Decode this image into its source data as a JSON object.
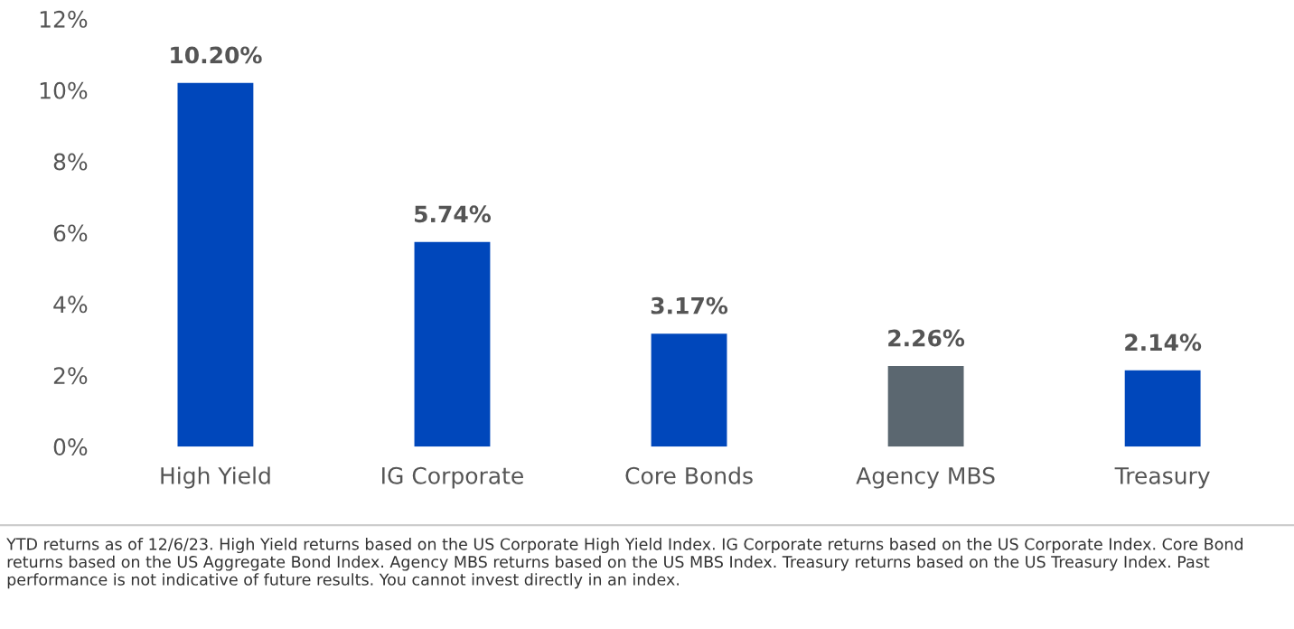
{
  "chart_data": {
    "type": "bar",
    "categories": [
      "High Yield",
      "IG Corporate",
      "Core Bonds",
      "Agency MBS",
      "Treasury"
    ],
    "values": [
      10.2,
      5.74,
      3.17,
      2.26,
      2.14
    ],
    "colors": [
      "#0047bb",
      "#0047bb",
      "#0047bb",
      "#5b6770",
      "#0047bb"
    ],
    "value_labels": [
      "10.20%",
      "5.74%",
      "3.17%",
      "2.26%",
      "2.14%"
    ],
    "ylim": [
      0,
      12
    ],
    "yticks": [
      {
        "value": 0,
        "label": "0%"
      },
      {
        "value": 2,
        "label": "2%"
      },
      {
        "value": 4,
        "label": "4%"
      },
      {
        "value": 6,
        "label": "6%"
      },
      {
        "value": 8,
        "label": "8%"
      },
      {
        "value": 10,
        "label": "10%"
      },
      {
        "value": 12,
        "label": "12%"
      }
    ],
    "grid": false,
    "legend": false,
    "annotations": [
      "YTD returns as of 12/6/23. High Yield returns based on the US Corporate High Yield Index. IG Corporate returns based on the US Corporate Index. Core Bond returns based on the US Aggregate Bond Index. Agency MBS returns based on the US MBS Index. Treasury returns based on the US Treasury Index. Past performance is not indicative of future results. You cannot invest directly in an index."
    ]
  }
}
